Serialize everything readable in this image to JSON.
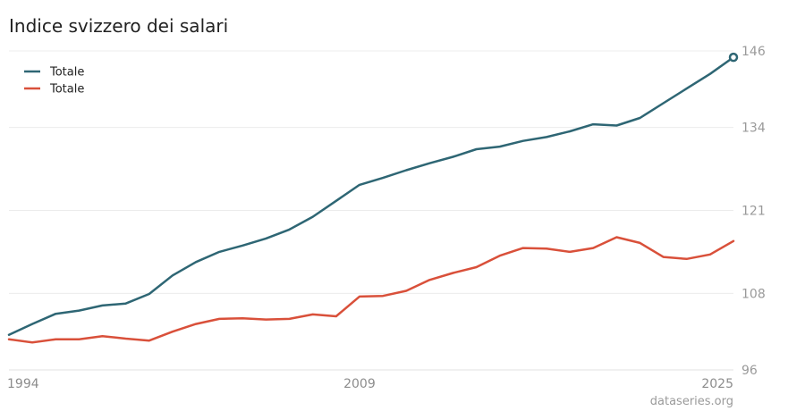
{
  "chart_data": {
    "type": "line",
    "title": "Indice svizzero dei salari",
    "source_text": "dataseries.org",
    "x": [
      1994,
      1995,
      1996,
      1997,
      1998,
      1999,
      2000,
      2001,
      2002,
      2003,
      2004,
      2005,
      2006,
      2007,
      2008,
      2009,
      2010,
      2011,
      2012,
      2013,
      2014,
      2015,
      2016,
      2017,
      2018,
      2019,
      2020,
      2021,
      2022,
      2023,
      2024,
      2025
    ],
    "x_ticks": [
      "1994",
      "2009",
      "2025"
    ],
    "xlim": [
      1994,
      2025
    ],
    "y_ticks": [
      "96",
      "108",
      "121",
      "134",
      "146"
    ],
    "ylim": [
      96,
      146
    ],
    "grid": true,
    "legend_position": "top-left",
    "series": [
      {
        "name": "Totale",
        "color": "#2e6674",
        "end_marker": true,
        "values": [
          101.5,
          103.2,
          104.8,
          105.3,
          106.1,
          106.4,
          107.9,
          110.8,
          112.9,
          114.5,
          115.5,
          116.6,
          118.0,
          120.0,
          122.5,
          125.0,
          126.1,
          127.3,
          128.4,
          129.4,
          130.6,
          131.0,
          131.9,
          132.5,
          133.4,
          134.5,
          134.3,
          135.5,
          137.8,
          140.1,
          142.4,
          145.0
        ]
      },
      {
        "name": "Totale",
        "color": "#d9503a",
        "end_marker": false,
        "values": [
          100.8,
          100.3,
          100.8,
          100.8,
          101.3,
          100.9,
          100.6,
          102.0,
          103.2,
          104.0,
          104.1,
          103.9,
          104.0,
          104.7,
          104.4,
          107.5,
          107.6,
          108.4,
          110.1,
          111.2,
          112.1,
          113.9,
          115.1,
          115.0,
          114.5,
          115.1,
          116.8,
          115.9,
          113.7,
          113.4,
          114.1,
          116.2
        ]
      }
    ]
  }
}
